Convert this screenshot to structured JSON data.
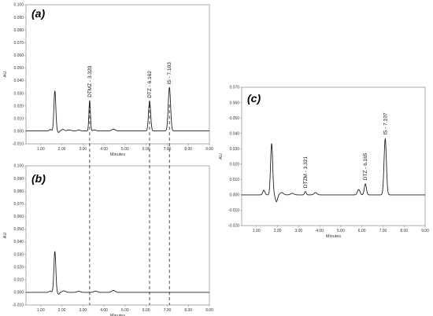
{
  "chart_data": [
    {
      "id": "a",
      "type": "line",
      "panel_label": "(a)",
      "xlabel": "Minutes",
      "ylabel": "AU",
      "xlim": [
        0.3,
        9.0
      ],
      "ylim": [
        -0.01,
        0.1
      ],
      "xticks": [
        "1.00",
        "2.00",
        "3.00",
        "4.00",
        "5.00",
        "6.00",
        "7.00",
        "8.00",
        "9.00"
      ],
      "xtick_values": [
        1,
        2,
        3,
        4,
        5,
        6,
        7,
        8,
        9
      ],
      "yticks": [
        "-0.010",
        "0.000",
        "0.010",
        "0.020",
        "0.030",
        "0.040",
        "0.050",
        "0.060",
        "0.070",
        "0.080",
        "0.090",
        "0.100"
      ],
      "ytick_values": [
        -0.01,
        0,
        0.01,
        0.02,
        0.03,
        0.04,
        0.05,
        0.06,
        0.07,
        0.08,
        0.09,
        0.1
      ],
      "baseline": 0.0002,
      "peaks": [
        {
          "rt": 1.45,
          "height": 0.0012,
          "width": 0.05
        },
        {
          "rt": 1.67,
          "height": 0.0318,
          "width": 0.045
        },
        {
          "rt": 1.85,
          "height": -0.0012,
          "width": 0.04
        },
        {
          "rt": 2.05,
          "height": 0.0012,
          "width": 0.07
        },
        {
          "rt": 2.35,
          "height": 0.0008,
          "width": 0.09
        },
        {
          "rt": 2.8,
          "height": 0.0008,
          "width": 0.07
        },
        {
          "rt": 3.32,
          "height": 0.0242,
          "width": 0.035
        },
        {
          "rt": 3.55,
          "height": 0.0008,
          "width": 0.07
        },
        {
          "rt": 4.45,
          "height": 0.0015,
          "width": 0.08
        },
        {
          "rt": 6.162,
          "height": 0.0238,
          "width": 0.05
        },
        {
          "rt": 7.103,
          "height": 0.0345,
          "width": 0.055
        }
      ],
      "annotations": [
        {
          "text": "DTMZ - 3.320",
          "x": 3.32,
          "y": 0.0268
        },
        {
          "text": "DTZ - 6.162",
          "x": 6.162,
          "y": 0.0262
        },
        {
          "text": "IS - 7.103",
          "x": 7.103,
          "y": 0.037
        }
      ]
    },
    {
      "id": "b",
      "type": "line",
      "panel_label": "(b)",
      "xlabel": "Minutes",
      "ylabel": "AU",
      "xlim": [
        0.3,
        9.0
      ],
      "ylim": [
        -0.01,
        0.1
      ],
      "xticks": [
        "1.00",
        "2.00",
        "3.00",
        "4.00",
        "5.00",
        "6.00",
        "7.00",
        "8.00",
        "9.00"
      ],
      "xtick_values": [
        1,
        2,
        3,
        4,
        5,
        6,
        7,
        8,
        9
      ],
      "yticks": [
        "-0.010",
        "0.000",
        "0.010",
        "0.020",
        "0.030",
        "0.040",
        "0.050",
        "0.060",
        "0.070",
        "0.080",
        "0.090",
        "0.100"
      ],
      "ytick_values": [
        -0.01,
        0,
        0.01,
        0.02,
        0.03,
        0.04,
        0.05,
        0.06,
        0.07,
        0.08,
        0.09,
        0.1
      ],
      "baseline": 0.0,
      "peaks": [
        {
          "rt": 1.45,
          "height": 0.001,
          "width": 0.05
        },
        {
          "rt": 1.67,
          "height": 0.0325,
          "width": 0.045
        },
        {
          "rt": 1.85,
          "height": -0.0015,
          "width": 0.04
        },
        {
          "rt": 2.1,
          "height": 0.0012,
          "width": 0.08
        },
        {
          "rt": 2.8,
          "height": 0.0008,
          "width": 0.08
        },
        {
          "rt": 3.6,
          "height": 0.001,
          "width": 0.08
        },
        {
          "rt": 4.45,
          "height": 0.0015,
          "width": 0.08
        }
      ],
      "annotations": []
    },
    {
      "id": "c",
      "type": "line",
      "panel_label": "(c)",
      "xlabel": "Minutes",
      "ylabel": "AU",
      "xlim": [
        0.3,
        9.0
      ],
      "ylim": [
        -0.02,
        0.07
      ],
      "xticks": [
        "1.00",
        "2.00",
        "3.00",
        "4.00",
        "5.00",
        "6.00",
        "7.00",
        "8.00",
        "9.00"
      ],
      "xtick_values": [
        1,
        2,
        3,
        4,
        5,
        6,
        7,
        8,
        9
      ],
      "yticks": [
        "-0.020",
        "-0.010",
        "0.000",
        "0.010",
        "0.020",
        "0.030",
        "0.040",
        "0.050",
        "0.060",
        "0.070"
      ],
      "ytick_values": [
        -0.02,
        -0.01,
        0,
        0.01,
        0.02,
        0.03,
        0.04,
        0.05,
        0.06,
        0.07
      ],
      "baseline": 0.0,
      "peaks": [
        {
          "rt": 1.35,
          "height": 0.003,
          "width": 0.05
        },
        {
          "rt": 1.72,
          "height": 0.0335,
          "width": 0.05
        },
        {
          "rt": 1.95,
          "height": -0.0045,
          "width": 0.05
        },
        {
          "rt": 2.2,
          "height": 0.0015,
          "width": 0.08
        },
        {
          "rt": 2.7,
          "height": 0.001,
          "width": 0.08
        },
        {
          "rt": 3.321,
          "height": 0.0022,
          "width": 0.04
        },
        {
          "rt": 3.8,
          "height": 0.0015,
          "width": 0.07
        },
        {
          "rt": 5.85,
          "height": 0.0035,
          "width": 0.06
        },
        {
          "rt": 6.165,
          "height": 0.0072,
          "width": 0.05
        },
        {
          "rt": 7.107,
          "height": 0.0365,
          "width": 0.055
        }
      ],
      "annotations": [
        {
          "text": "DTZM - 3.321",
          "x": 3.321,
          "y": 0.0045
        },
        {
          "text": "DTZ - 6.165",
          "x": 6.165,
          "y": 0.0095
        },
        {
          "text": "IS - 7.107",
          "x": 7.107,
          "y": 0.039
        }
      ]
    }
  ],
  "guide_lines_rt": [
    3.32,
    6.162,
    7.103
  ]
}
